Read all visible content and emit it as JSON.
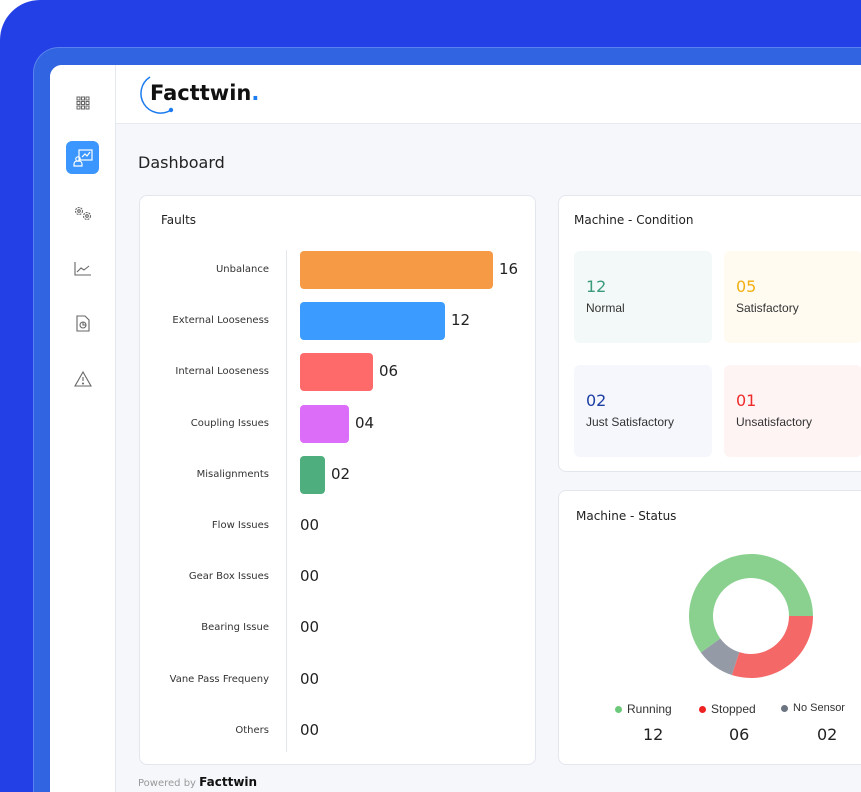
{
  "brand": {
    "name": "Facttwin",
    "dot": "."
  },
  "page_title": "Dashboard",
  "sidebar": {
    "items": [
      {
        "icon": "grid-icon"
      },
      {
        "icon": "presentation-chart-icon",
        "active": true
      },
      {
        "icon": "gears-icon"
      },
      {
        "icon": "line-chart-icon"
      },
      {
        "icon": "document-report-icon"
      },
      {
        "icon": "warning-icon"
      }
    ]
  },
  "faults": {
    "title": "Faults",
    "items": [
      {
        "label": "Unbalance",
        "value": "16",
        "n": 16,
        "color": "#f79a45"
      },
      {
        "label": "External Looseness",
        "value": "12",
        "n": 12,
        "color": "#3b9bff"
      },
      {
        "label": "Internal Looseness",
        "value": "06",
        "n": 6,
        "color": "#fe6a6a"
      },
      {
        "label": "Coupling Issues",
        "value": "04",
        "n": 4,
        "color": "#dc6df8"
      },
      {
        "label": "Misalignments",
        "value": "02",
        "n": 2,
        "color": "#4fae7e"
      },
      {
        "label": "Flow Issues",
        "value": "00",
        "n": 0,
        "color": "#ccc"
      },
      {
        "label": "Gear Box Issues",
        "value": "00",
        "n": 0,
        "color": "#ccc"
      },
      {
        "label": "Bearing Issue",
        "value": "00",
        "n": 0,
        "color": "#ccc"
      },
      {
        "label": "Vane Pass Frequeny",
        "value": "00",
        "n": 0,
        "color": "#ccc"
      },
      {
        "label": "Others",
        "value": "00",
        "n": 0,
        "color": "#ccc"
      }
    ]
  },
  "condition": {
    "title": "Machine - Condition",
    "tiles": [
      {
        "value": "12",
        "label": "Normal",
        "color": "#3a9a7a",
        "bg": "#f3f9f8"
      },
      {
        "value": "05",
        "label": "Satisfactory",
        "color": "#f2b011",
        "bg": "#fffbf1"
      },
      {
        "value": "02",
        "label": "Just Satisfactory",
        "color": "#1d3fa4",
        "bg": "#f5f7fc"
      },
      {
        "value": "01",
        "label": "Unsatisfactory",
        "color": "#ee2b2b",
        "bg": "#fff4f4"
      }
    ]
  },
  "status": {
    "title": "Machine - Status",
    "items": [
      {
        "label": "Running",
        "value": "12",
        "n": 12,
        "color": "#8ad190",
        "dot": "#6dc97a"
      },
      {
        "label": "Stopped",
        "value": "06",
        "n": 6,
        "color": "#f46868",
        "dot": "#ee2222"
      },
      {
        "label": "No Sensor",
        "value": "02",
        "n": 2,
        "color": "#949ba6",
        "dot": "#6b7480"
      }
    ]
  },
  "footer": {
    "powered_by": "Powered by",
    "brand": "Facttwin"
  }
}
